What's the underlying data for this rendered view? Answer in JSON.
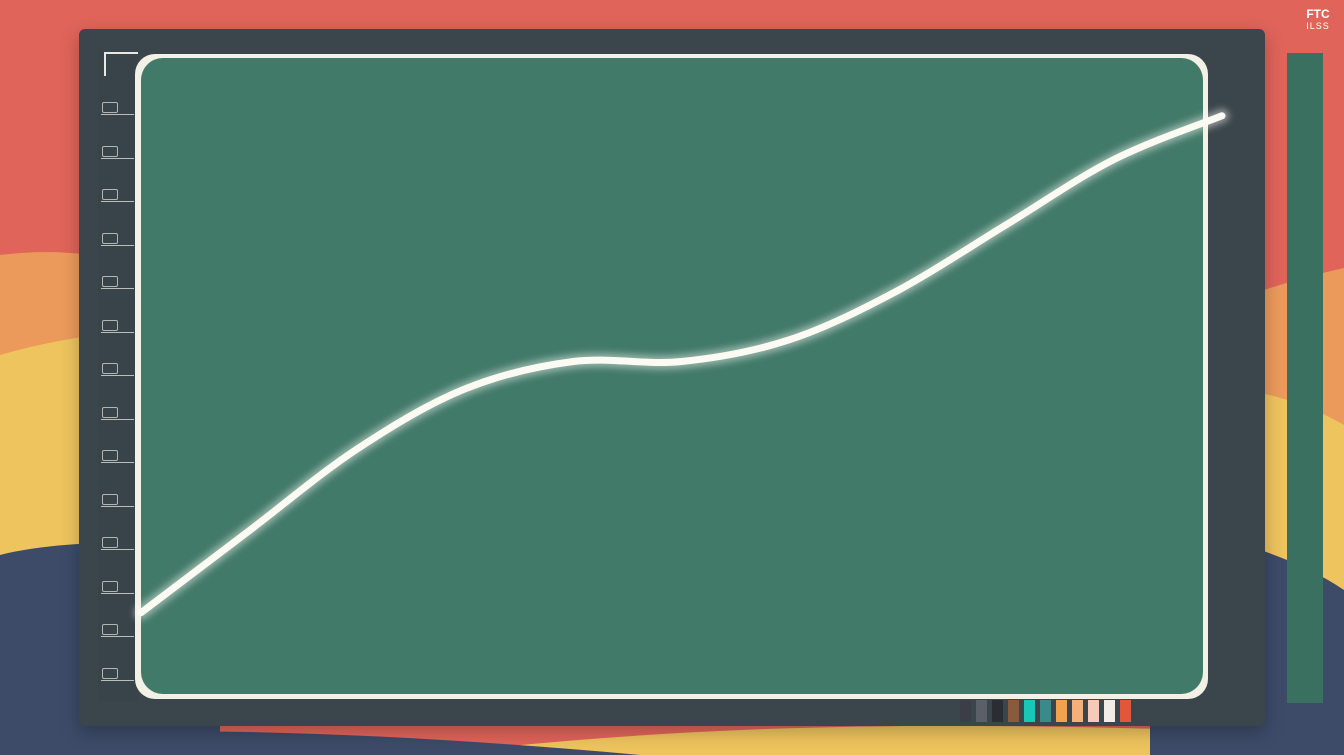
{
  "brand": {
    "line1": "FTC",
    "line2": "ILSS"
  },
  "colors": {
    "plot_background": "#427a6a",
    "plot_frame": "#f3f0e6",
    "curve": "#fbfbf4",
    "monitor": "#3b464c",
    "backdrop_red": "#e0645a",
    "backdrop_orange": "#ec9a5c",
    "backdrop_yellow": "#eec45e",
    "backdrop_navy": "#3d4b69"
  },
  "palette_swatches": [
    "#3b3f45",
    "#5a6066",
    "#2a2d31",
    "#8a5a3c",
    "#19c7b7",
    "#3a8a8a",
    "#f0a24e",
    "#f4b07a",
    "#f7c9b8",
    "#f1ede4",
    "#e2563c"
  ],
  "chart_data": {
    "type": "line",
    "title": "",
    "xlabel": "",
    "ylabel": "",
    "y_tick_count": 14,
    "grid": false,
    "legend": "none",
    "xlim": [
      0,
      1
    ],
    "ylim": [
      0,
      1
    ],
    "series": [
      {
        "x": [
          0.0,
          0.1,
          0.2,
          0.3,
          0.4,
          0.5,
          0.6,
          0.7,
          0.8,
          0.9,
          1.0
        ],
        "y": [
          0.05,
          0.2,
          0.35,
          0.46,
          0.51,
          0.51,
          0.55,
          0.64,
          0.76,
          0.88,
          0.96
        ]
      }
    ]
  }
}
